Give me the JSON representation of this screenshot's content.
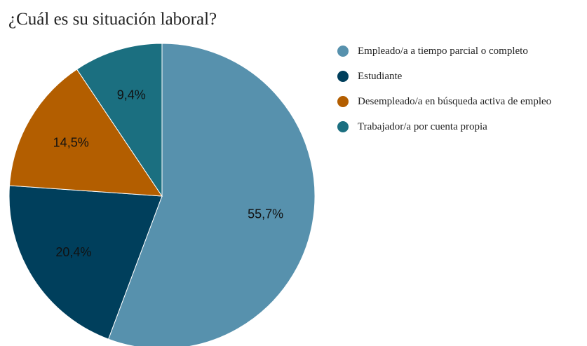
{
  "chart_data": {
    "type": "pie",
    "title": "¿Cuál es su situación laboral?",
    "slices": [
      {
        "name": "Empleado/a a tiempo parcial o completo",
        "value": 55.7,
        "label": "55,7%",
        "color": "#5791ad"
      },
      {
        "name": "Estudiante",
        "value": 20.4,
        "label": "20,4%",
        "color": "#003f5c"
      },
      {
        "name": "Desempleado/a en búsqueda activa de empleo",
        "value": 14.5,
        "label": "14,5%",
        "color": "#b35e00"
      },
      {
        "name": "Trabajador/a por cuenta propia",
        "value": 9.4,
        "label": "9,4%",
        "color": "#1b6f80"
      }
    ],
    "start_angle": "top",
    "direction": "clockwise",
    "legend_position": "right"
  }
}
